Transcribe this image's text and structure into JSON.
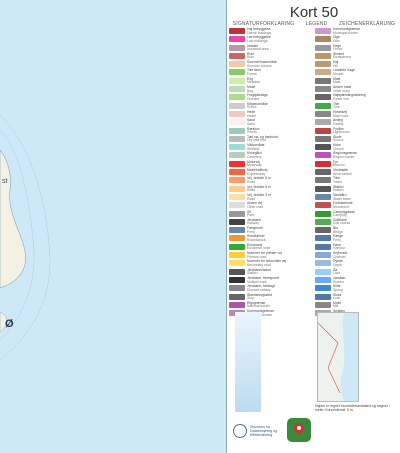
{
  "map": {
    "labels": [
      "Ø",
      "st"
    ],
    "colors": {
      "sea": "#cfe8f7",
      "land": "#f4f1e4",
      "shore": "#8ab"
    }
  },
  "legend": {
    "title": "Kort 50",
    "heads": [
      "SIGNATURFORKLARING",
      "LEGEND",
      "ZEICHENERKLÄRUNG"
    ],
    "left": [
      {
        "t": "Høj bebyggelse",
        "s": "Dense buildings",
        "c": "#b33"
      },
      {
        "t": "Lav bebyggelse",
        "s": "Low buildings",
        "c": "#e4a"
      },
      {
        "t": "Industri",
        "s": "Industrial area",
        "c": "#b9a"
      },
      {
        "t": "Ruin",
        "s": "Ruin",
        "c": "#c66"
      },
      {
        "t": "Sommerhusområde",
        "s": "Summer houses",
        "c": "#eca"
      },
      {
        "t": "Tæt skov",
        "s": "Forest",
        "c": "#8c6"
      },
      {
        "t": "Eng",
        "s": "Meadow",
        "c": "#cea"
      },
      {
        "t": "Mose",
        "s": "Bog",
        "c": "#bdb"
      },
      {
        "t": "Frugtplantage",
        "s": "Orchard",
        "c": "#ad8"
      },
      {
        "t": "Klippeområde",
        "s": "Rocks",
        "c": "#ccc"
      },
      {
        "t": "Hede",
        "s": "Heath",
        "c": "#ecb"
      },
      {
        "t": "Sand",
        "s": "Sand",
        "c": "#fee"
      },
      {
        "t": "Rørskov",
        "s": "Reeds",
        "c": "#9cb"
      },
      {
        "t": "Tørt sø- og havbund",
        "s": "Dry lake bed",
        "c": "#bbb"
      },
      {
        "t": "Vådområde",
        "s": "Wetland",
        "c": "#9dd"
      },
      {
        "t": "Kirkegård",
        "s": "Cemetery",
        "c": "#bcb"
      },
      {
        "t": "Motorvej",
        "s": "Motorway",
        "c": "#e33"
      },
      {
        "t": "Motortrafikvej",
        "s": "Expressway",
        "c": "#e64"
      },
      {
        "t": "Vej, bredde 8 m",
        "s": "Road",
        "c": "#f96"
      },
      {
        "t": "Vej, bredde 6 m",
        "s": "Road",
        "c": "#fc8"
      },
      {
        "t": "Vej, bredde 3 m",
        "s": "Road",
        "c": "#fda"
      },
      {
        "t": "Anden vej",
        "s": "Other road",
        "c": "#ddd"
      },
      {
        "t": "Sti",
        "s": "Path",
        "c": "#999"
      },
      {
        "t": "Jernbane",
        "s": "Railway",
        "c": "#444"
      },
      {
        "t": "Færgerute",
        "s": "Ferry",
        "c": "#68a"
      },
      {
        "t": "Rundkørsel",
        "s": "Roundabout",
        "c": "#e93"
      },
      {
        "t": "Europavej",
        "s": "European route",
        "c": "#3a3"
      },
      {
        "t": "Nummer for primær vej",
        "s": "Primary road",
        "c": "#fc3"
      },
      {
        "t": "Nummer for sekundær vej",
        "s": "Secondary road",
        "c": "#fd6"
      },
      {
        "t": "Jernbanestation",
        "s": "Station",
        "c": "#555"
      },
      {
        "t": "Jernbane, fleresporet",
        "s": "Multiple track",
        "c": "#333"
      },
      {
        "t": "Jernbane, Nedlagt",
        "s": "Disused railway",
        "c": "#888"
      },
      {
        "t": "Standsningssted",
        "s": "Stop",
        "c": "#666"
      },
      {
        "t": "Rigsgrænse",
        "s": "National border",
        "c": "#a5a"
      },
      {
        "t": "Kommunegrænse",
        "s": "Municipal border",
        "c": "#b8b"
      }
    ],
    "right": [
      {
        "t": "Kommunegrænse",
        "s": "Municipal border",
        "c": "#c9c"
      },
      {
        "t": "Dige",
        "s": "Dike",
        "c": "#a86"
      },
      {
        "t": "Hegn",
        "s": "Fence",
        "c": "#999"
      },
      {
        "t": "Skrænt",
        "s": "Escarpment",
        "c": "#b96"
      },
      {
        "t": "Høj",
        "s": "Hill",
        "c": "#b97"
      },
      {
        "t": "Landede Kage",
        "s": "Mound",
        "c": "#ca8"
      },
      {
        "t": "Mast",
        "s": "Mast",
        "c": "#777"
      },
      {
        "t": "Anden mast",
        "s": "Other mast",
        "c": "#888"
      },
      {
        "t": "Højspændingsledning",
        "s": "Power line",
        "c": "#666"
      },
      {
        "t": "Træ",
        "s": "Tree",
        "c": "#4a4"
      },
      {
        "t": "Hovedvej",
        "s": "Main road",
        "c": "#888"
      },
      {
        "t": "Anlæg",
        "s": "Facility",
        "c": "#aaa"
      },
      {
        "t": "Fyrtårn",
        "s": "Lighthouse",
        "c": "#b44"
      },
      {
        "t": "Skole",
        "s": "School",
        "c": "#777"
      },
      {
        "t": "Kirke",
        "s": "Church",
        "c": "#555"
      },
      {
        "t": "Regionsgrænse",
        "s": "Region border",
        "c": "#b5b"
      },
      {
        "t": "Fyr",
        "s": "Beacon",
        "c": "#c33"
      },
      {
        "t": "Vindmølle",
        "s": "Wind turbine",
        "c": "#666"
      },
      {
        "t": "Tårn",
        "s": "Tower",
        "c": "#777"
      },
      {
        "t": "Station",
        "s": "Station",
        "c": "#555"
      },
      {
        "t": "Vandtårn",
        "s": "Water tower",
        "c": "#68a"
      },
      {
        "t": "Fortidsminde",
        "s": "Monument",
        "c": "#b55"
      },
      {
        "t": "Campingplads",
        "s": "Camping",
        "c": "#393"
      },
      {
        "t": "Golfbane",
        "s": "Golf course",
        "c": "#5a5"
      },
      {
        "t": "Bro",
        "s": "Bridge",
        "c": "#666"
      },
      {
        "t": "Færge",
        "s": "Ferry",
        "c": "#57a"
      },
      {
        "t": "Havn",
        "s": "Harbour",
        "c": "#57a"
      },
      {
        "t": "Sejlrende",
        "s": "Channel",
        "c": "#8ac"
      },
      {
        "t": "Dybde",
        "s": "Depth",
        "c": "#9bd"
      },
      {
        "t": "Sø",
        "s": "Lake",
        "c": "#9cf"
      },
      {
        "t": "Vandløb",
        "s": "Stream",
        "c": "#6af"
      },
      {
        "t": "Kilde",
        "s": "Spring",
        "c": "#48c"
      },
      {
        "t": "Sluse",
        "s": "Lock",
        "c": "#57a"
      },
      {
        "t": "Molle",
        "s": "Mill",
        "c": "#888"
      },
      {
        "t": "Sejlsten",
        "s": "Sea stone",
        "c": "#aaa"
      }
    ],
    "bottom_note": "Højder er regnet fra middelvandstand og angivet i meter. Kurveinterval: 5 m.",
    "logo_text": [
      "Styrelsen for",
      "Dataforsyning og",
      "Effektivisering"
    ]
  }
}
